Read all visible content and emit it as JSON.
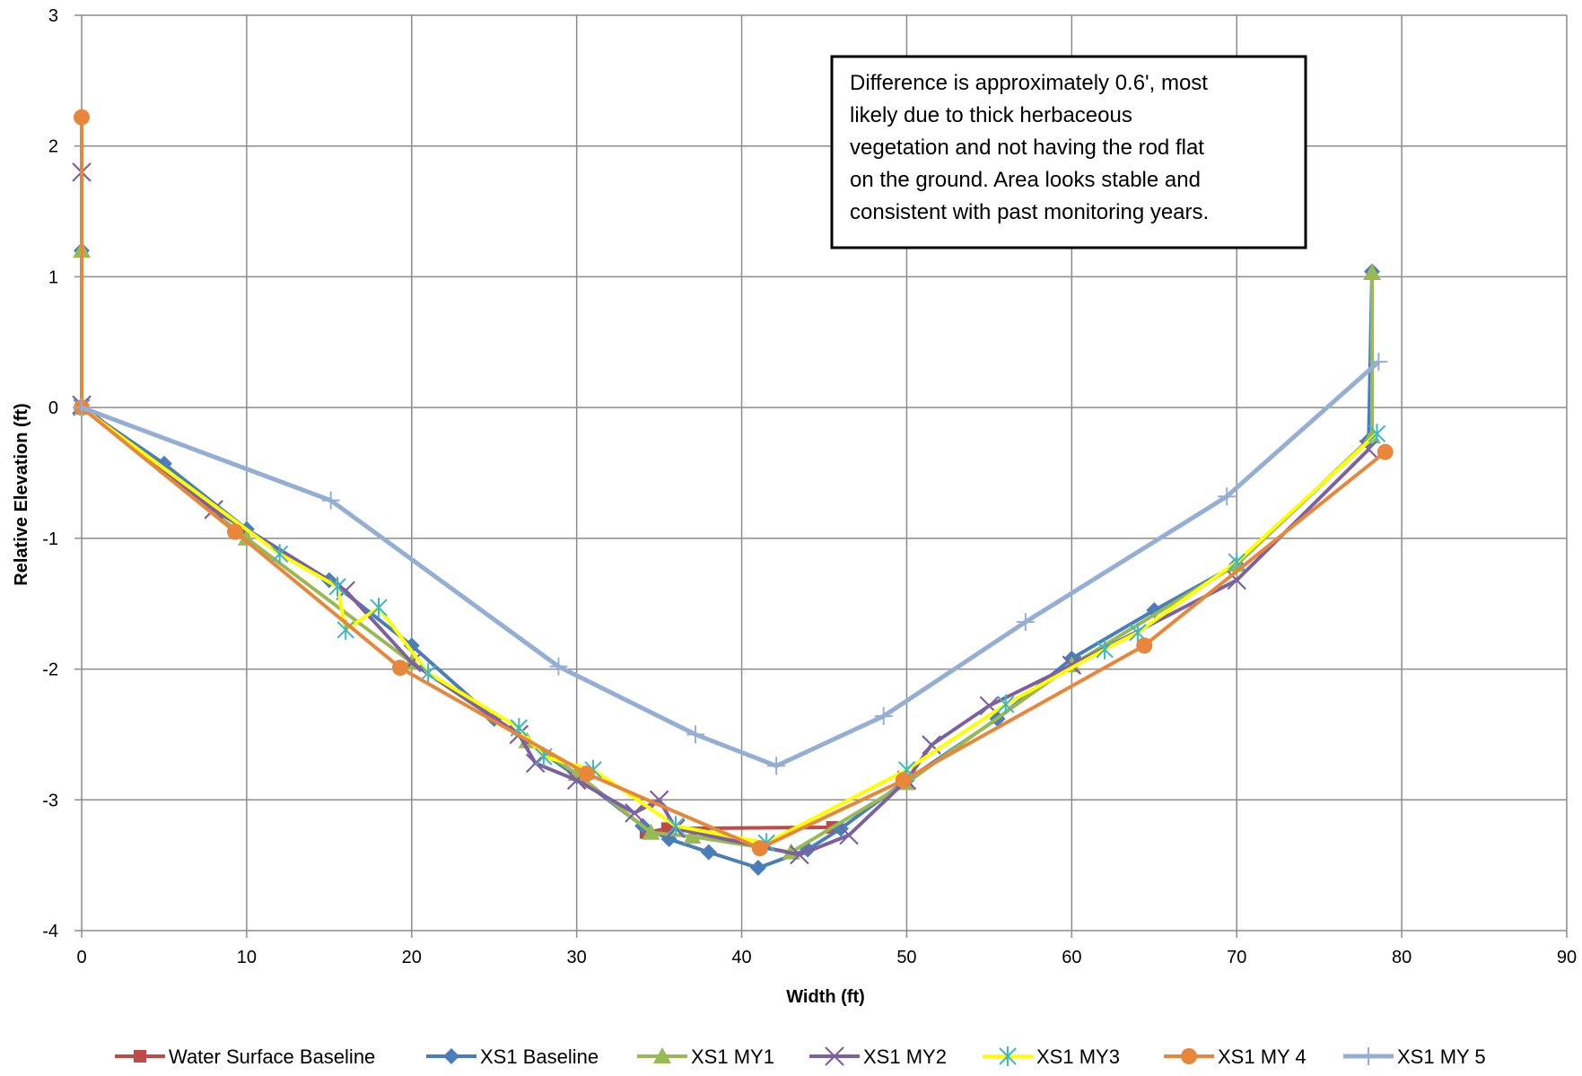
{
  "chart_data": {
    "type": "line",
    "xlabel": "Width (ft)",
    "ylabel": "Relative Elevation (ft)",
    "xlim": [
      0,
      90
    ],
    "ylim": [
      -4,
      3
    ],
    "xticks": [
      0,
      10,
      20,
      30,
      40,
      50,
      60,
      70,
      80,
      90
    ],
    "yticks": [
      3,
      2,
      1,
      0,
      -1,
      -2,
      -3,
      -4
    ],
    "grid": true,
    "legend_position": "bottom",
    "annotation": {
      "lines": [
        "Difference is approximately 0.6', most",
        "likely due to thick herbaceous",
        "vegetation and not having the rod flat",
        "on the ground.  Area looks stable and",
        "consistent with past monitoring years."
      ]
    },
    "series": [
      {
        "name": "Water Surface Baseline",
        "color": "#BE4B48",
        "marker": "square",
        "line_width": 4,
        "points": [
          [
            34.2,
            -3.25
          ],
          [
            35.5,
            -3.22
          ],
          [
            45.5,
            -3.21
          ]
        ]
      },
      {
        "name": "XS1 Baseline",
        "color": "#4A7EBB",
        "marker": "diamond",
        "line_width": 4,
        "points": [
          [
            0,
            1.2
          ],
          [
            0,
            0
          ],
          [
            5,
            -0.43
          ],
          [
            10,
            -0.93
          ],
          [
            15,
            -1.32
          ],
          [
            20,
            -1.82
          ],
          [
            25,
            -2.38
          ],
          [
            30,
            -2.82
          ],
          [
            34,
            -3.2
          ],
          [
            35.6,
            -3.3
          ],
          [
            38,
            -3.4
          ],
          [
            41,
            -3.52
          ],
          [
            44,
            -3.38
          ],
          [
            46,
            -3.22
          ],
          [
            50,
            -2.85
          ],
          [
            55.5,
            -2.38
          ],
          [
            60,
            -1.92
          ],
          [
            65,
            -1.55
          ],
          [
            70,
            -1.2
          ],
          [
            78,
            -0.25
          ],
          [
            78.2,
            1.04
          ]
        ]
      },
      {
        "name": "XS1 MY1",
        "color": "#98B954",
        "marker": "triangle",
        "line_width": 4,
        "points": [
          [
            0,
            1.2
          ],
          [
            0,
            0
          ],
          [
            10,
            -1.0
          ],
          [
            20,
            -1.95
          ],
          [
            27,
            -2.55
          ],
          [
            30,
            -2.8
          ],
          [
            34.5,
            -3.25
          ],
          [
            37,
            -3.28
          ],
          [
            43,
            -3.4
          ],
          [
            50,
            -2.87
          ],
          [
            60,
            -1.97
          ],
          [
            70,
            -1.2
          ],
          [
            78.2,
            -0.22
          ],
          [
            78.2,
            1.03
          ]
        ]
      },
      {
        "name": "XS1 MY2",
        "color": "#7D60A0",
        "marker": "x",
        "line_width": 4,
        "points": [
          [
            0,
            1.8
          ],
          [
            0,
            0.02
          ],
          [
            8,
            -0.78
          ],
          [
            16,
            -1.4
          ],
          [
            20,
            -1.95
          ],
          [
            26.5,
            -2.5
          ],
          [
            27.5,
            -2.72
          ],
          [
            30,
            -2.85
          ],
          [
            33.5,
            -3.1
          ],
          [
            35,
            -3.0
          ],
          [
            36,
            -3.22
          ],
          [
            43.5,
            -3.42
          ],
          [
            46.5,
            -3.27
          ],
          [
            50,
            -2.85
          ],
          [
            51.5,
            -2.58
          ],
          [
            55,
            -2.28
          ],
          [
            60,
            -1.97
          ],
          [
            70,
            -1.32
          ],
          [
            78,
            -0.32
          ]
        ]
      },
      {
        "name": "XS1 MY3",
        "color": "#FFFF00",
        "marker": "asterisk",
        "line_width": 4,
        "points": [
          [
            0,
            0
          ],
          [
            12,
            -1.12
          ],
          [
            15.5,
            -1.37
          ],
          [
            16,
            -1.7
          ],
          [
            18,
            -1.53
          ],
          [
            21,
            -2.03
          ],
          [
            26.5,
            -2.45
          ],
          [
            28,
            -2.67
          ],
          [
            31,
            -2.77
          ],
          [
            36,
            -3.2
          ],
          [
            41.5,
            -3.33
          ],
          [
            50,
            -2.77
          ],
          [
            56,
            -2.27
          ],
          [
            62,
            -1.85
          ],
          [
            64,
            -1.72
          ],
          [
            70,
            -1.18
          ],
          [
            78.5,
            -0.2
          ]
        ]
      },
      {
        "name": "XS1 MY 4",
        "color": "#E8873B",
        "marker": "circle",
        "line_width": 4,
        "points": [
          [
            0,
            2.22
          ],
          [
            0,
            0
          ],
          [
            9.3,
            -0.95
          ],
          [
            19.3,
            -1.99
          ],
          [
            30.6,
            -2.8
          ],
          [
            41.1,
            -3.37
          ],
          [
            49.8,
            -2.85
          ],
          [
            64.4,
            -1.82
          ],
          [
            79.0,
            -0.34
          ]
        ]
      },
      {
        "name": "XS1 MY 5",
        "color": "#95AED4",
        "marker": "plus",
        "line_width": 5,
        "points": [
          [
            0,
            0
          ],
          [
            15.1,
            -0.71
          ],
          [
            28.9,
            -1.98
          ],
          [
            37.2,
            -2.5
          ],
          [
            42.1,
            -2.74
          ],
          [
            48.6,
            -2.36
          ],
          [
            57.2,
            -1.64
          ],
          [
            69.4,
            -0.68
          ],
          [
            78.6,
            0.35
          ]
        ]
      }
    ]
  }
}
